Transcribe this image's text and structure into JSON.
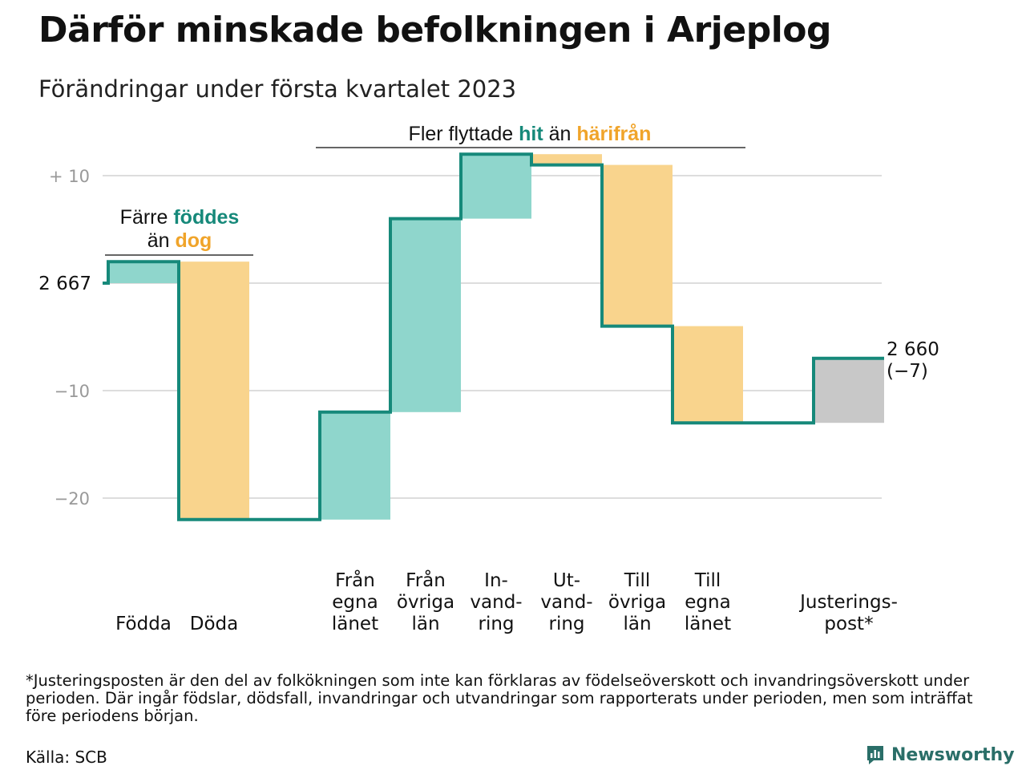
{
  "title": "Därför minskade befolkningen i Arjeplog",
  "subtitle": "Förändringar under första kvartalet 2023",
  "colors": {
    "line": "#16897a",
    "increase": "#8fd6cc",
    "decrease": "#f9d48d",
    "adjustment": "#c8c8c8",
    "teal_text": "#16897a",
    "orange_text": "#f0a42a",
    "grid": "#dddddd",
    "tick": "#999999"
  },
  "chart_data": {
    "type": "waterfall",
    "start_value": 2667,
    "start_label": "2 667",
    "end_value": 2660,
    "end_label": "2 660",
    "end_change_label": "(−7)",
    "yticks": [
      {
        "value": 10,
        "label": "+ 10"
      },
      {
        "value": -10,
        "label": "−10"
      },
      {
        "value": -20,
        "label": "−20"
      }
    ],
    "ylim": [
      -24,
      13
    ],
    "grid": true,
    "bars": [
      {
        "label_lines": [
          "Födda"
        ],
        "value": 2,
        "kind": "increase"
      },
      {
        "label_lines": [
          "Döda"
        ],
        "value": -24,
        "kind": "decrease"
      },
      {
        "label_lines": [
          "Från",
          "egna",
          "länet"
        ],
        "value": 10,
        "kind": "increase"
      },
      {
        "label_lines": [
          "Från",
          "övriga",
          "län"
        ],
        "value": 18,
        "kind": "increase"
      },
      {
        "label_lines": [
          "In-",
          "vand-",
          "ring"
        ],
        "value": 6,
        "kind": "increase"
      },
      {
        "label_lines": [
          "Ut-",
          "vand-",
          "ring"
        ],
        "value": -1,
        "kind": "decrease"
      },
      {
        "label_lines": [
          "Till",
          "övriga",
          "län"
        ],
        "value": -15,
        "kind": "decrease"
      },
      {
        "label_lines": [
          "Till",
          "egna",
          "länet"
        ],
        "value": -9,
        "kind": "decrease"
      },
      {
        "label_lines": [
          "Justerings-",
          "post*"
        ],
        "value": 6,
        "kind": "adjustment"
      }
    ],
    "annotations": [
      {
        "parts": [
          {
            "text": "Färre ",
            "style": "plain"
          },
          {
            "text": "föddes",
            "style": "teal"
          }
        ],
        "parts2": [
          {
            "text": "än ",
            "style": "plain"
          },
          {
            "text": "dog",
            "style": "orange"
          }
        ]
      },
      {
        "parts": [
          {
            "text": "Fler flyttade ",
            "style": "plain"
          },
          {
            "text": "hit",
            "style": "teal"
          },
          {
            "text": " än ",
            "style": "plain"
          },
          {
            "text": "härifrån",
            "style": "orange"
          }
        ]
      }
    ]
  },
  "footnote": "*Justeringsposten är den del av folkökningen som inte kan förklaras av födelseöverskott och invandringsöverskott under perioden. Där ingår födslar, dödsfall, invandringar och utvandringar som rapporterats under perioden, men som inträffat före periodens början.",
  "source": "Källa: SCB",
  "brand": {
    "name": "Newsworthy",
    "icon": "newsworthy-logo-icon"
  }
}
